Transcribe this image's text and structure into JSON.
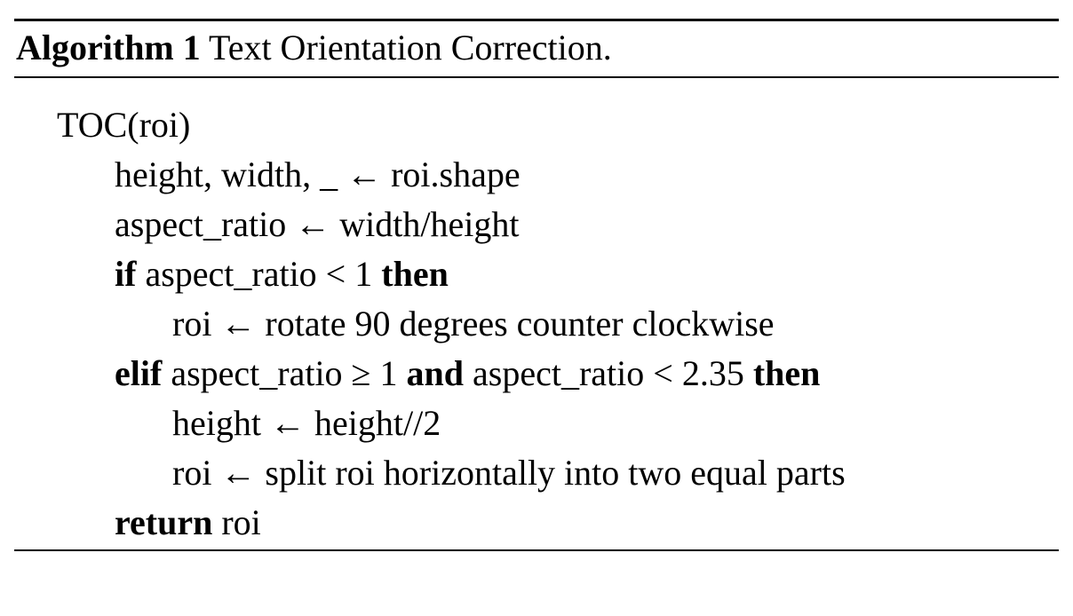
{
  "algorithm": {
    "label": "Algorithm 1",
    "title": "Text Orientation Correction."
  },
  "lines": {
    "signature": "TOC(roi)",
    "shape": "height, width, _ ← roi.shape",
    "aspect": "aspect_ratio ← width/height",
    "if_kw": "if",
    "if_cond": " aspect_ratio < 1 ",
    "then1_kw": "then",
    "rotate": "roi ← rotate 90 degrees counter clockwise",
    "elif_kw": "elif",
    "elif_cond1": " aspect_ratio ≥ 1 ",
    "and_kw": "and",
    "elif_cond2": " aspect_ratio < 2.35 ",
    "then2_kw": "then",
    "halve": "height ← height//2",
    "split": "roi ← split roi horizontally into two equal parts",
    "return_kw": "return",
    "return_val": " roi"
  }
}
